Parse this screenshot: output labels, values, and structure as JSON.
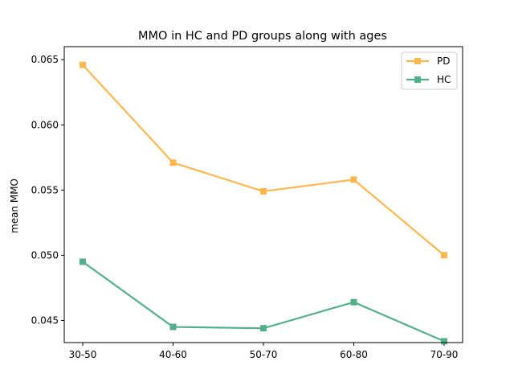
{
  "chart_data": {
    "type": "line",
    "title": "MMO in HC and PD groups along with ages",
    "xlabel": "",
    "ylabel": "mean MMO",
    "categories": [
      "30-50",
      "40-60",
      "50-70",
      "60-80",
      "70-90"
    ],
    "ylim": [
      0.0433,
      0.066
    ],
    "yticks": [
      0.045,
      0.05,
      0.055,
      0.06,
      0.065
    ],
    "ytick_labels": [
      "0.045",
      "0.050",
      "0.055",
      "0.060",
      "0.065"
    ],
    "grid": false,
    "legend_position": "top-right",
    "marker": "square",
    "series": [
      {
        "name": "PD",
        "color": "#ffb74d",
        "values": [
          0.0646,
          0.0571,
          0.0549,
          0.0558,
          0.05
        ]
      },
      {
        "name": "HC",
        "color": "#52b08a",
        "values": [
          0.0495,
          0.0445,
          0.0444,
          0.0464,
          0.0434
        ]
      }
    ]
  }
}
